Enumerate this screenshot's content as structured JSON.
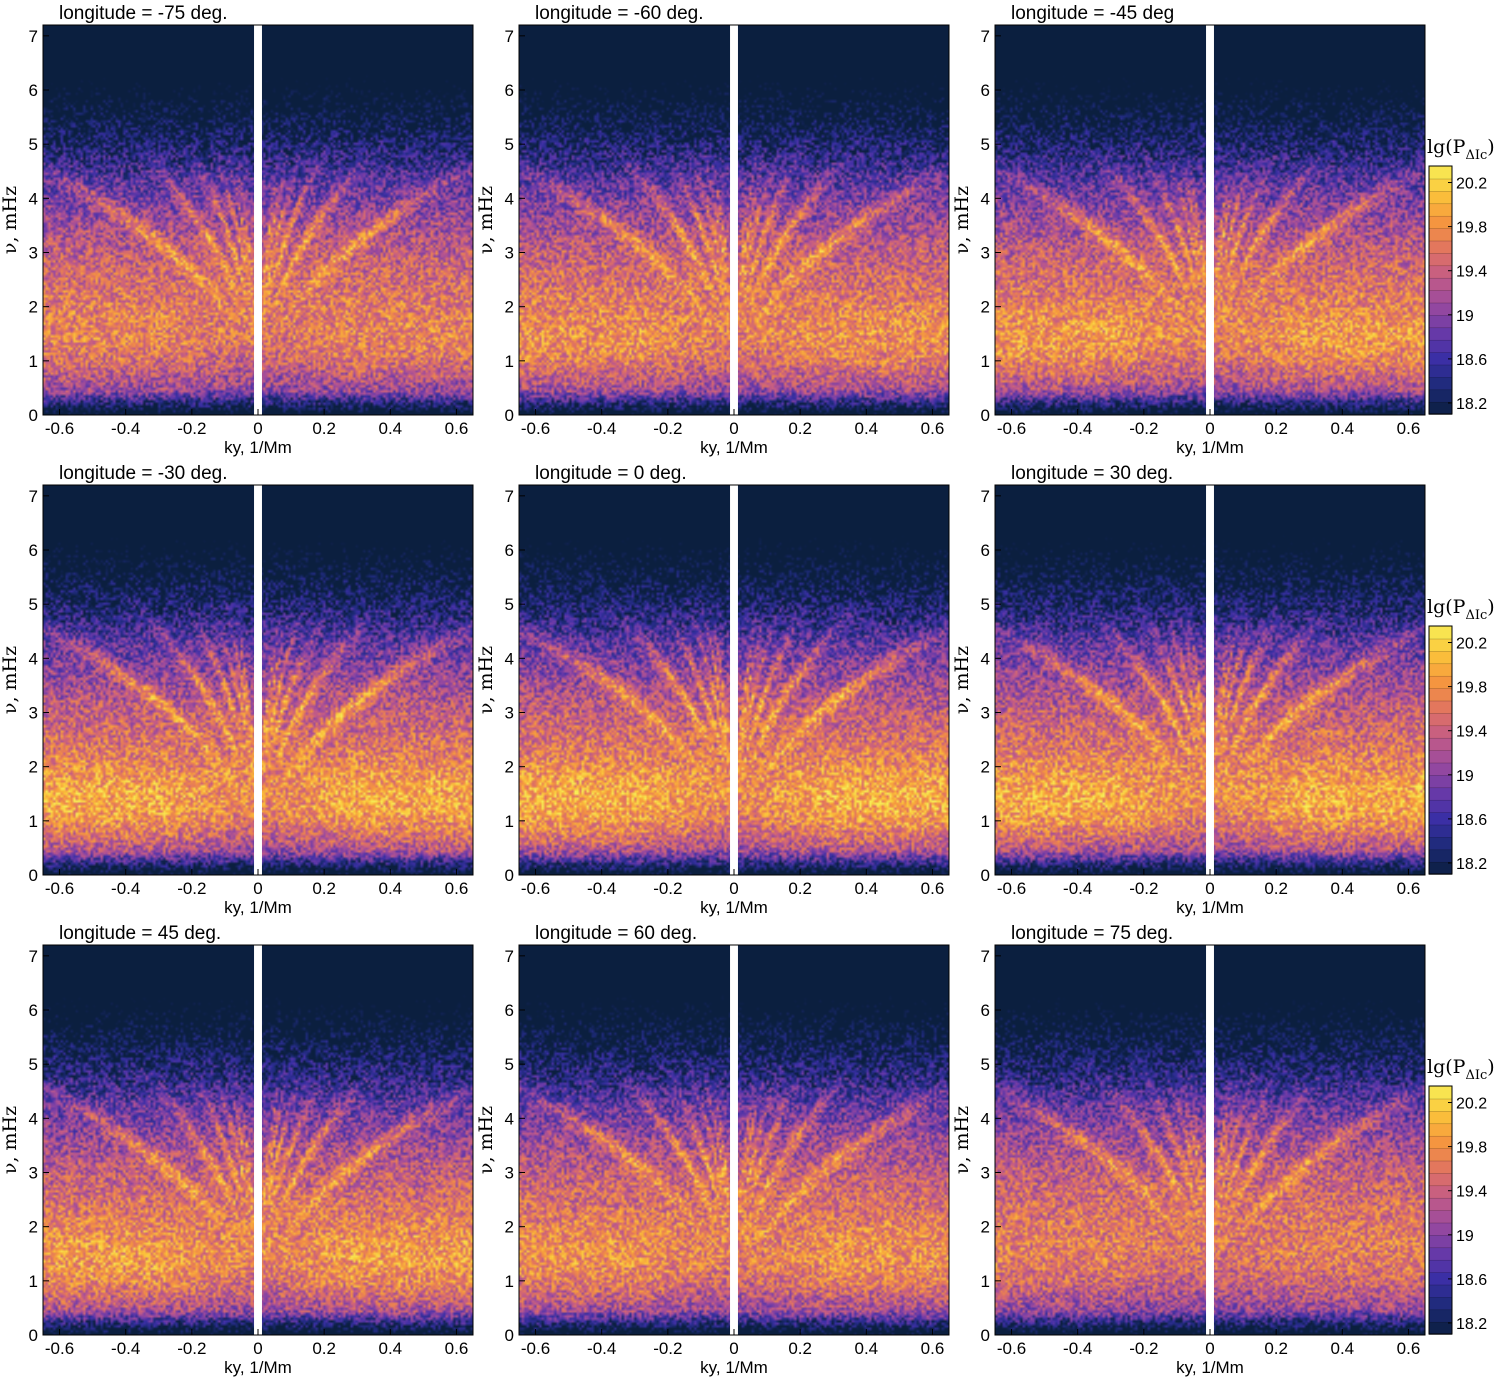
{
  "chart_data": [
    {
      "type": "heatmap",
      "title": "longitude = -75 deg.",
      "xlabel": "ky, 1/Mm",
      "ylabel": "ν, mHz",
      "xlim": [
        -0.65,
        0.65
      ],
      "ylim": [
        0,
        7.2
      ],
      "xticks": [
        "-0.6",
        "-0.4",
        "-0.2",
        "0",
        "0.2",
        "0.4",
        "0.6"
      ],
      "yticks": [
        "0",
        "1",
        "2",
        "3",
        "4",
        "5",
        "6",
        "7"
      ],
      "low_band_strength": 0.55,
      "ridge_strength": 0.9
    },
    {
      "type": "heatmap",
      "title": "longitude = -60 deg.",
      "xlabel": "ky, 1/Mm",
      "ylabel": "ν, mHz",
      "xlim": [
        -0.65,
        0.65
      ],
      "ylim": [
        0,
        7.2
      ],
      "xticks": [
        "-0.6",
        "-0.4",
        "-0.2",
        "0",
        "0.2",
        "0.4",
        "0.6"
      ],
      "yticks": [
        "0",
        "1",
        "2",
        "3",
        "4",
        "5",
        "6",
        "7"
      ],
      "low_band_strength": 0.7,
      "ridge_strength": 0.9
    },
    {
      "type": "heatmap",
      "title": "longitude = -45 deg",
      "xlabel": "ky, 1/Mm",
      "ylabel": "ν, mHz",
      "xlim": [
        -0.65,
        0.65
      ],
      "ylim": [
        0,
        7.2
      ],
      "xticks": [
        "-0.6",
        "-0.4",
        "-0.2",
        "0",
        "0.2",
        "0.4",
        "0.6"
      ],
      "yticks": [
        "0",
        "1",
        "2",
        "3",
        "4",
        "5",
        "6",
        "7"
      ],
      "low_band_strength": 0.8,
      "ridge_strength": 0.9
    },
    {
      "type": "heatmap",
      "title": "longitude = -30 deg.",
      "xlabel": "ky, 1/Mm",
      "ylabel": "ν, mHz",
      "xlim": [
        -0.65,
        0.65
      ],
      "ylim": [
        0,
        7.2
      ],
      "xticks": [
        "-0.6",
        "-0.4",
        "-0.2",
        "0",
        "0.2",
        "0.4",
        "0.6"
      ],
      "yticks": [
        "0",
        "1",
        "2",
        "3",
        "4",
        "5",
        "6",
        "7"
      ],
      "low_band_strength": 1.0,
      "ridge_strength": 0.95
    },
    {
      "type": "heatmap",
      "title": "longitude = 0 deg.",
      "xlabel": "ky, 1/Mm",
      "ylabel": "ν, mHz",
      "xlim": [
        -0.65,
        0.65
      ],
      "ylim": [
        0,
        7.2
      ],
      "xticks": [
        "-0.6",
        "-0.4",
        "-0.2",
        "0",
        "0.2",
        "0.4",
        "0.6"
      ],
      "yticks": [
        "0",
        "1",
        "2",
        "3",
        "4",
        "5",
        "6",
        "7"
      ],
      "low_band_strength": 1.05,
      "ridge_strength": 1.0
    },
    {
      "type": "heatmap",
      "title": "longitude = 30 deg.",
      "xlabel": "ky, 1/Mm",
      "ylabel": "ν, mHz",
      "xlim": [
        -0.65,
        0.65
      ],
      "ylim": [
        0,
        7.2
      ],
      "xticks": [
        "-0.6",
        "-0.4",
        "-0.2",
        "0",
        "0.2",
        "0.4",
        "0.6"
      ],
      "yticks": [
        "0",
        "1",
        "2",
        "3",
        "4",
        "5",
        "6",
        "7"
      ],
      "low_band_strength": 1.0,
      "ridge_strength": 0.95
    },
    {
      "type": "heatmap",
      "title": "longitude = 45 deg.",
      "xlabel": "ky, 1/Mm",
      "ylabel": "ν, mHz",
      "xlim": [
        -0.65,
        0.65
      ],
      "ylim": [
        0,
        7.2
      ],
      "xticks": [
        "-0.6",
        "-0.4",
        "-0.2",
        "0",
        "0.2",
        "0.4",
        "0.6"
      ],
      "yticks": [
        "0",
        "1",
        "2",
        "3",
        "4",
        "5",
        "6",
        "7"
      ],
      "low_band_strength": 0.85,
      "ridge_strength": 0.9
    },
    {
      "type": "heatmap",
      "title": "longitude = 60 deg.",
      "xlabel": "ky, 1/Mm",
      "ylabel": "ν, mHz",
      "xlim": [
        -0.65,
        0.65
      ],
      "ylim": [
        0,
        7.2
      ],
      "xticks": [
        "-0.6",
        "-0.4",
        "-0.2",
        "0",
        "0.2",
        "0.4",
        "0.6"
      ],
      "yticks": [
        "0",
        "1",
        "2",
        "3",
        "4",
        "5",
        "6",
        "7"
      ],
      "low_band_strength": 0.7,
      "ridge_strength": 0.9
    },
    {
      "type": "heatmap",
      "title": "longitude = 75 deg.",
      "xlabel": "ky, 1/Mm",
      "ylabel": "ν, mHz",
      "xlim": [
        -0.65,
        0.65
      ],
      "ylim": [
        0,
        7.2
      ],
      "xticks": [
        "-0.6",
        "-0.4",
        "-0.2",
        "0",
        "0.2",
        "0.4",
        "0.6"
      ],
      "yticks": [
        "0",
        "1",
        "2",
        "3",
        "4",
        "5",
        "6",
        "7"
      ],
      "low_band_strength": 0.45,
      "ridge_strength": 0.85
    }
  ],
  "colorbar": {
    "title": "lg(P",
    "title_sub": "ΔIc",
    "title_close": ")",
    "ticks": [
      "20.2",
      "19.8",
      "19.4",
      "19",
      "18.6",
      "18.2"
    ],
    "tick_values": [
      20.2,
      19.8,
      19.4,
      19.0,
      18.6,
      18.2
    ],
    "range": [
      18.1,
      20.35
    ],
    "colormap": [
      "#0b1f3f",
      "#1d2a78",
      "#3a2fa5",
      "#6a3aa8",
      "#9a4a9e",
      "#c45c86",
      "#e2745f",
      "#f5963f",
      "#fbc33a",
      "#f7ee56"
    ]
  }
}
